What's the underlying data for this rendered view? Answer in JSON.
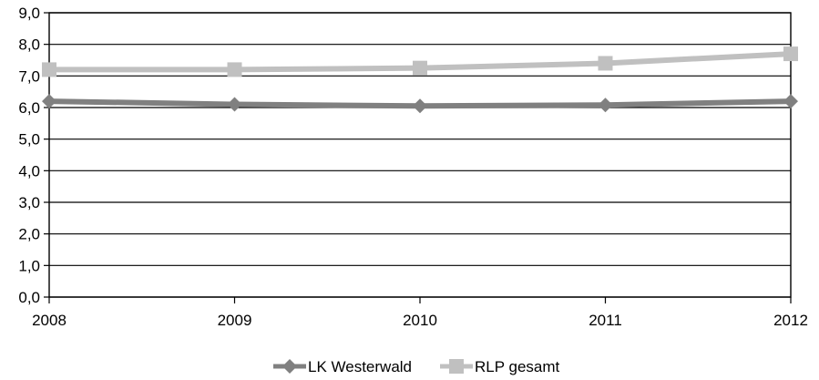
{
  "chart_data": {
    "type": "line",
    "title": "",
    "xlabel": "",
    "ylabel": "",
    "categories": [
      "2008",
      "2009",
      "2010",
      "2011",
      "2012"
    ],
    "ylim": [
      0,
      9
    ],
    "y_ticks": [
      "0,0",
      "1,0",
      "2,0",
      "3,0",
      "4,0",
      "5,0",
      "6,0",
      "7,0",
      "8,0",
      "9,0"
    ],
    "grid": true,
    "legend_position": "bottom",
    "series": [
      {
        "name": "LK Westerwald",
        "values": [
          6.2,
          6.1,
          6.05,
          6.08,
          6.2
        ],
        "color": "#808080",
        "marker": "diamond"
      },
      {
        "name": "RLP gesamt",
        "values": [
          7.2,
          7.2,
          7.25,
          7.4,
          7.7
        ],
        "color": "#c0c0c0",
        "marker": "square"
      }
    ]
  }
}
